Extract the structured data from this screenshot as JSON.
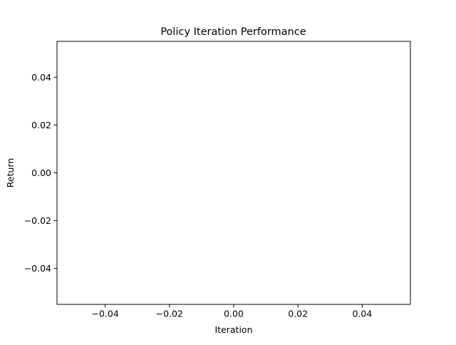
{
  "chart_data": {
    "type": "line",
    "title": "Policy Iteration Performance",
    "xlabel": "Iteration",
    "ylabel": "Return",
    "xlim": [
      -0.055,
      0.055
    ],
    "ylim": [
      -0.055,
      0.055
    ],
    "xticks": [
      -0.04,
      -0.02,
      0.0,
      0.02,
      0.04
    ],
    "yticks": [
      -0.04,
      -0.02,
      0.0,
      0.02,
      0.04
    ],
    "xtick_labels": [
      "−0.04",
      "−0.02",
      "0.00",
      "0.02",
      "0.04"
    ],
    "ytick_labels": [
      "−0.04",
      "−0.02",
      "0.00",
      "0.02",
      "0.04"
    ],
    "series": [
      {
        "name": "Return",
        "x": [],
        "y": []
      }
    ],
    "grid": false,
    "legend": "none"
  }
}
